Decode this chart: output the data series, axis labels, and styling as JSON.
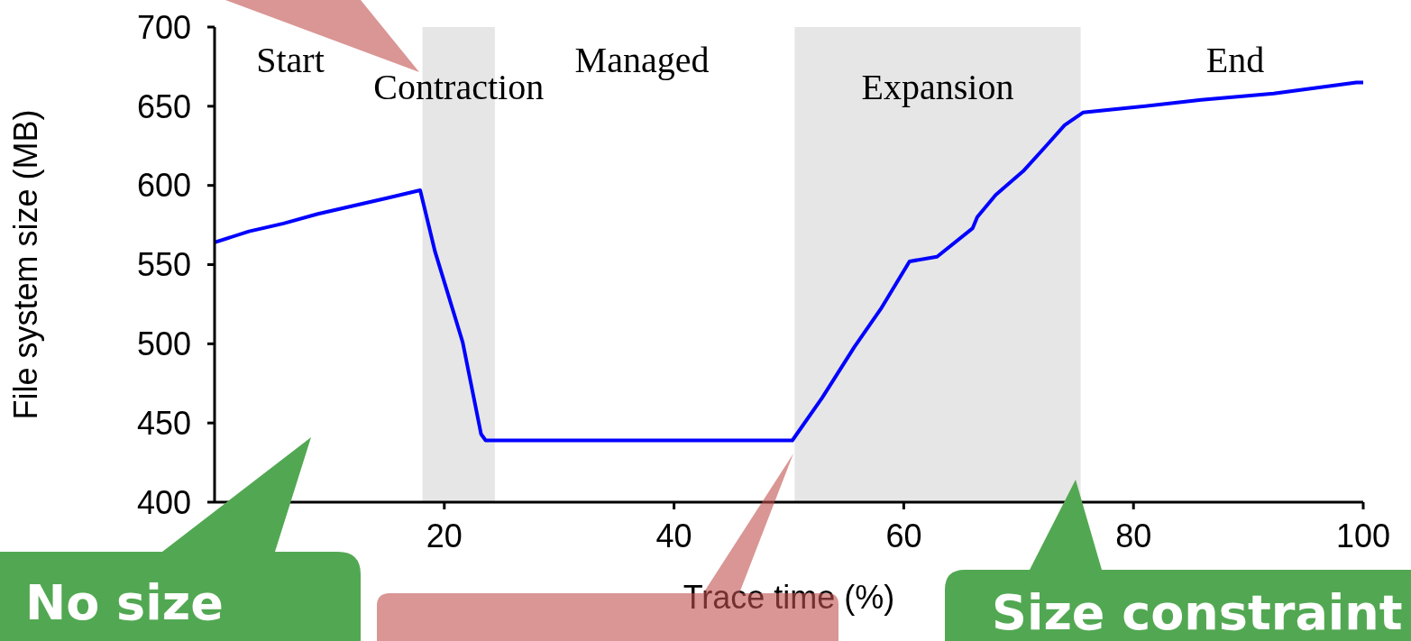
{
  "chart_data": {
    "type": "line",
    "xlabel": "Trace time (%)",
    "ylabel": "File system size (MB)",
    "xlim": [
      0,
      100
    ],
    "xticks": [
      20,
      40,
      60,
      80,
      100
    ],
    "ylim": [
      400,
      700
    ],
    "yticks": [
      400,
      450,
      500,
      550,
      600,
      650,
      700
    ],
    "marker": "none",
    "line_style": "solid",
    "series": [
      {
        "color": "#0000ff",
        "x": [
          0,
          3,
          6,
          9,
          12,
          15,
          17.9,
          18.2,
          19.2,
          20.8,
          21.6,
          23.2,
          23.6,
          30,
          40,
          50.3,
          52.9,
          55.7,
          58,
          60.5,
          62.9,
          66.0,
          66.4,
          68.0,
          70.4,
          72.4,
          74.0,
          75.6,
          81,
          85.9,
          92.2,
          99.4,
          100
        ],
        "values": [
          564,
          571,
          576,
          582,
          587,
          592,
          597,
          588,
          558,
          520,
          501,
          443,
          439,
          439,
          439,
          439,
          466,
          498,
          522,
          552,
          555,
          573,
          580,
          594,
          609,
          625,
          638,
          646,
          650,
          654,
          658,
          665,
          665
        ]
      }
    ],
    "bands": [
      {
        "axis": "x",
        "from": 18.1,
        "to": 24.4,
        "label": "Contraction",
        "color": "#e6e6e6"
      },
      {
        "axis": "x",
        "from": 50.5,
        "to": 75.4,
        "label": "Expansion",
        "color": "#e6e6e6"
      }
    ],
    "annotations": [
      "Start",
      "Managed",
      "End",
      "No size",
      "Size constraint"
    ]
  }
}
